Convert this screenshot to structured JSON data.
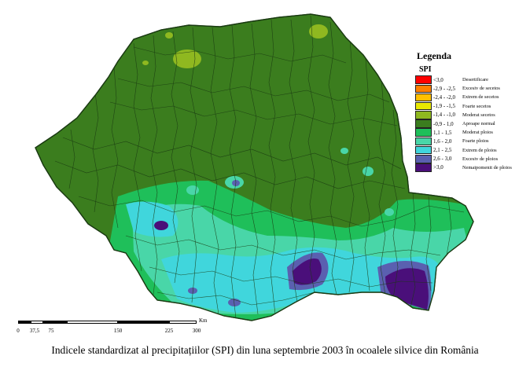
{
  "legend": {
    "title": "Legenda",
    "subtitle": "SPI",
    "items": [
      {
        "range": "<3,0",
        "label": "Desertificare",
        "color": "#ff0000"
      },
      {
        "range": "-2,9 - -2,5",
        "label": "Excesiv de secetos",
        "color": "#ff7f00"
      },
      {
        "range": "-2,4 - -2,0",
        "label": "Extrem de secetos",
        "color": "#ffc000"
      },
      {
        "range": "-1,9 - -1,5",
        "label": "Foarte secetos",
        "color": "#e8e800"
      },
      {
        "range": "-1,4 - -1,0",
        "label": "Moderat secetos",
        "color": "#8fb820"
      },
      {
        "range": "-0,9 - 1,0",
        "label": "Aproape normal",
        "color": "#3b7d1e"
      },
      {
        "range": "1,1 - 1,5",
        "label": "Moderat ploios",
        "color": "#1fbf5a"
      },
      {
        "range": "1,6 - 2,0",
        "label": "Foarte ploios",
        "color": "#49d6a8"
      },
      {
        "range": "2,1 - 2,5",
        "label": "Extrem de ploios",
        "color": "#40d6dc"
      },
      {
        "range": "2,6 - 3,0",
        "label": "Excesiv de ploios",
        "color": "#5a60b0"
      },
      {
        "range": ">3,0",
        "label": "Nemaipomenit de ploios",
        "color": "#4a0f7a"
      }
    ]
  },
  "scale": {
    "ticks": [
      "0",
      "37,5",
      "75",
      "150",
      "225",
      "300"
    ],
    "unit": "Km"
  },
  "caption": "Indicele standardizat al precipitațiilor (SPI) din luna septembrie 2003 în ocoalele silvice din România",
  "colors": {
    "normal": "#3b7d1e",
    "moderately_dry": "#8fb820",
    "moderately_wet": "#1fbf5a",
    "very_wet": "#49d6a8",
    "extremely_wet": "#40d6dc",
    "excessively_wet": "#5a60b0",
    "exceptionally_wet": "#4a0f7a",
    "borders": "#1a3a12"
  }
}
